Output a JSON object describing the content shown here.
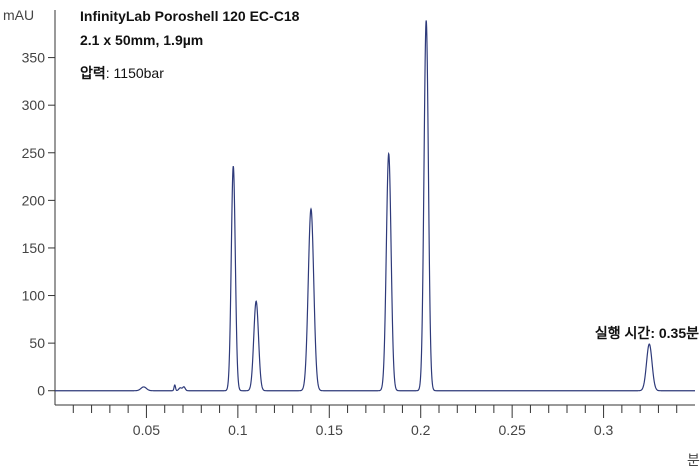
{
  "chart_data": {
    "type": "line",
    "units": {
      "y": "mAU",
      "x": "분"
    },
    "xlim": [
      0.0,
      0.35
    ],
    "ylim": [
      -15,
      400
    ],
    "x_ticks": [
      0.05,
      0.1,
      0.15,
      0.2,
      0.25,
      0.3
    ],
    "x_tick_labels": [
      "0.05",
      "0.1",
      "0.15",
      "0.2",
      "0.25",
      "0.3"
    ],
    "y_ticks": [
      0,
      50,
      100,
      150,
      200,
      250,
      300,
      350
    ],
    "y_tick_labels": [
      "0",
      "50",
      "100",
      "150",
      "200",
      "250",
      "300",
      "350"
    ],
    "grid": false,
    "line_color": "#2e3a7a",
    "series": [
      {
        "baseline": 0,
        "peaks": [
          {
            "x": 0.0485,
            "y": 4,
            "width": 0.0015
          },
          {
            "x": 0.0655,
            "y": 6,
            "width": 0.0004
          },
          {
            "x": 0.0685,
            "y": 3,
            "width": 0.0008
          },
          {
            "x": 0.0705,
            "y": 4,
            "width": 0.0007
          },
          {
            "x": 0.0975,
            "y": 236,
            "width": 0.0011
          },
          {
            "x": 0.11,
            "y": 94,
            "width": 0.0013
          },
          {
            "x": 0.14,
            "y": 191,
            "width": 0.0015
          },
          {
            "x": 0.1825,
            "y": 249,
            "width": 0.0013
          },
          {
            "x": 0.203,
            "y": 389,
            "width": 0.0012
          },
          {
            "x": 0.325,
            "y": 49,
            "width": 0.0015
          }
        ]
      }
    ],
    "annotations": {
      "column_title_line1": "InfinityLab Poroshell 120 EC-C18",
      "column_title_line2": "2.1 x 50mm, 1.9µm",
      "pressure_label": "압력",
      "pressure_value": ": 1150bar",
      "runtime_label": "실행 시간: 0.35분"
    }
  }
}
